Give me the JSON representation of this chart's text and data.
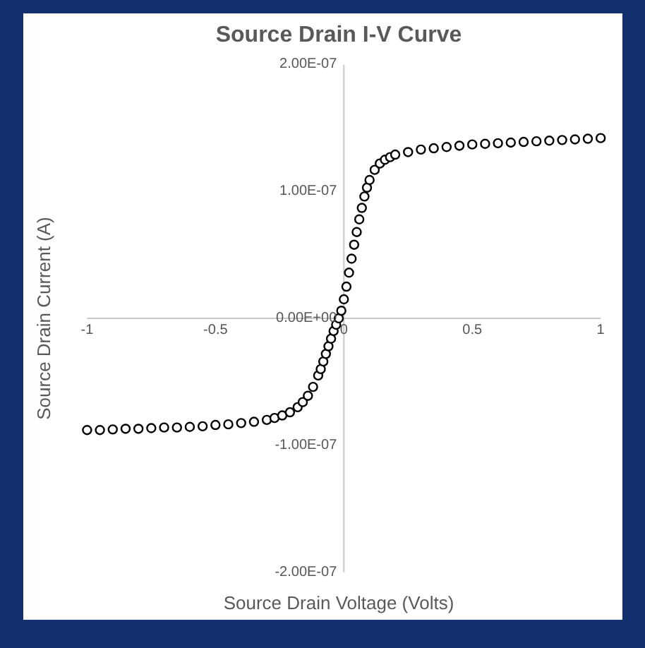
{
  "chart_data": {
    "type": "scatter",
    "title": "Source Drain I-V Curve",
    "xlabel": "Source Drain Voltage (Volts)",
    "ylabel": "Source Drain Current (A)",
    "xlim": [
      -1,
      1
    ],
    "ylim": [
      -2e-07,
      2e-07
    ],
    "xticks": [
      -1,
      -0.5,
      0,
      0.5,
      1
    ],
    "yticks": [
      {
        "value": -2e-07,
        "label": "-2.00E-07"
      },
      {
        "value": -1e-07,
        "label": "-1.00E-07"
      },
      {
        "value": 0,
        "label": "0.00E+00"
      },
      {
        "value": 1e-07,
        "label": "1.00E-07"
      },
      {
        "value": 2e-07,
        "label": "2.00E-07"
      }
    ],
    "grid": false,
    "marker": "circle",
    "x": [
      -1,
      -0.95,
      -0.9,
      -0.85,
      -0.8,
      -0.75,
      -0.7,
      -0.65,
      -0.6,
      -0.55,
      -0.5,
      -0.45,
      -0.4,
      -0.35,
      -0.3,
      -0.27,
      -0.24,
      -0.21,
      -0.18,
      -0.16,
      -0.14,
      -0.12,
      -0.1,
      -0.09,
      -0.08,
      -0.07,
      -0.06,
      -0.05,
      -0.04,
      -0.03,
      -0.02,
      -0.01,
      0,
      0.01,
      0.02,
      0.03,
      0.04,
      0.05,
      0.06,
      0.07,
      0.08,
      0.09,
      0.1,
      0.12,
      0.14,
      0.16,
      0.18,
      0.2,
      0.25,
      0.3,
      0.35,
      0.4,
      0.45,
      0.5,
      0.55,
      0.6,
      0.65,
      0.7,
      0.75,
      0.8,
      0.85,
      0.9,
      0.95,
      1
    ],
    "series": [
      {
        "color": "#000000",
        "values": [
          -8.8e-08,
          -8.8e-08,
          -8.75e-08,
          -8.7e-08,
          -8.7e-08,
          -8.65e-08,
          -8.6e-08,
          -8.6e-08,
          -8.55e-08,
          -8.5e-08,
          -8.4e-08,
          -8.35e-08,
          -8.25e-08,
          -8.15e-08,
          -8e-08,
          -7.85e-08,
          -7.65e-08,
          -7.4e-08,
          -7e-08,
          -6.6e-08,
          -6.1e-08,
          -5.4e-08,
          -4.5e-08,
          -4e-08,
          -3.4e-08,
          -2.8e-08,
          -2.2e-08,
          -1.6e-08,
          -1e-08,
          -5e-09,
          0,
          6e-09,
          1.5e-08,
          2.5e-08,
          3.6e-08,
          4.7e-08,
          5.8e-08,
          6.8e-08,
          7.8e-08,
          8.7e-08,
          9.6e-08,
          1.03e-07,
          1.09e-07,
          1.17e-07,
          1.22e-07,
          1.25e-07,
          1.27e-07,
          1.29e-07,
          1.31e-07,
          1.33e-07,
          1.34e-07,
          1.35e-07,
          1.36e-07,
          1.37e-07,
          1.375e-07,
          1.38e-07,
          1.385e-07,
          1.39e-07,
          1.395e-07,
          1.4e-07,
          1.405e-07,
          1.41e-07,
          1.415e-07,
          1.42e-07
        ]
      }
    ]
  }
}
